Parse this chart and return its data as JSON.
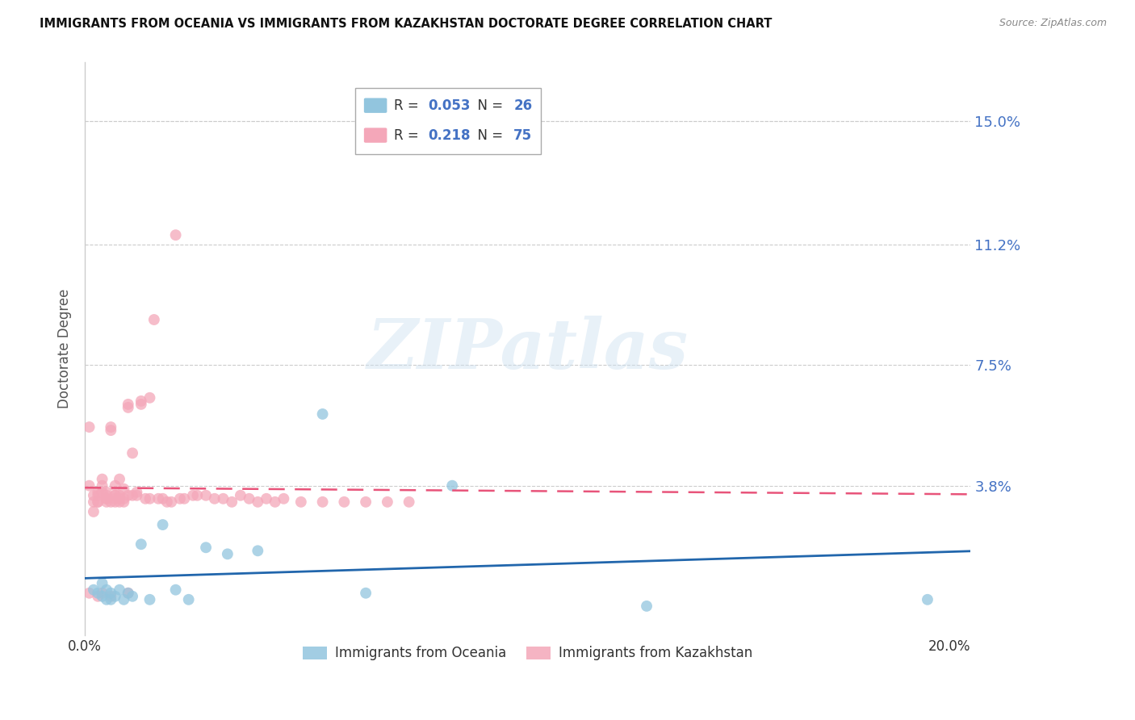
{
  "title": "IMMIGRANTS FROM OCEANIA VS IMMIGRANTS FROM KAZAKHSTAN DOCTORATE DEGREE CORRELATION CHART",
  "source": "Source: ZipAtlas.com",
  "ylabel": "Doctorate Degree",
  "ytick_labels": [
    "15.0%",
    "11.2%",
    "7.5%",
    "3.8%"
  ],
  "ytick_values": [
    0.15,
    0.112,
    0.075,
    0.038
  ],
  "xlim": [
    0.0,
    0.205
  ],
  "ylim": [
    -0.008,
    0.168
  ],
  "oceania_color": "#92c5de",
  "kazakhstan_color": "#f4a7b9",
  "trend_oceania_color": "#2166ac",
  "trend_kazakhstan_color": "#e8547a",
  "watermark": "ZIPatlas",
  "legend_r_oceania": "R = ",
  "legend_r_val_oceania": "0.053",
  "legend_n_oceania": "N = 26",
  "legend_r_kazakhstan": "R = ",
  "legend_r_val_kazakhstan": "0.218",
  "legend_n_kazakhstan": "N = 75",
  "oceania_x": [
    0.002,
    0.003,
    0.004,
    0.004,
    0.005,
    0.005,
    0.006,
    0.006,
    0.007,
    0.008,
    0.009,
    0.01,
    0.011,
    0.013,
    0.015,
    0.018,
    0.021,
    0.024,
    0.028,
    0.033,
    0.04,
    0.055,
    0.065,
    0.085,
    0.13,
    0.195
  ],
  "oceania_y": [
    0.006,
    0.005,
    0.008,
    0.004,
    0.006,
    0.003,
    0.005,
    0.003,
    0.004,
    0.006,
    0.003,
    0.005,
    0.004,
    0.02,
    0.003,
    0.026,
    0.006,
    0.003,
    0.019,
    0.017,
    0.018,
    0.06,
    0.005,
    0.038,
    0.001,
    0.003
  ],
  "kazakhstan_x": [
    0.001,
    0.001,
    0.001,
    0.002,
    0.002,
    0.002,
    0.003,
    0.003,
    0.003,
    0.003,
    0.003,
    0.004,
    0.004,
    0.004,
    0.004,
    0.005,
    0.005,
    0.005,
    0.005,
    0.005,
    0.006,
    0.006,
    0.006,
    0.006,
    0.007,
    0.007,
    0.007,
    0.007,
    0.007,
    0.008,
    0.008,
    0.008,
    0.008,
    0.009,
    0.009,
    0.009,
    0.01,
    0.01,
    0.01,
    0.01,
    0.011,
    0.011,
    0.012,
    0.012,
    0.013,
    0.013,
    0.014,
    0.015,
    0.015,
    0.016,
    0.017,
    0.018,
    0.019,
    0.02,
    0.021,
    0.022,
    0.023,
    0.025,
    0.026,
    0.028,
    0.03,
    0.032,
    0.034,
    0.036,
    0.038,
    0.04,
    0.042,
    0.044,
    0.046,
    0.05,
    0.055,
    0.06,
    0.065,
    0.07,
    0.075
  ],
  "kazakhstan_y": [
    0.038,
    0.056,
    0.005,
    0.033,
    0.03,
    0.035,
    0.033,
    0.033,
    0.035,
    0.036,
    0.004,
    0.036,
    0.04,
    0.038,
    0.005,
    0.033,
    0.034,
    0.036,
    0.035,
    0.034,
    0.055,
    0.056,
    0.033,
    0.004,
    0.038,
    0.034,
    0.035,
    0.033,
    0.035,
    0.04,
    0.033,
    0.035,
    0.034,
    0.034,
    0.037,
    0.033,
    0.063,
    0.062,
    0.035,
    0.005,
    0.035,
    0.048,
    0.035,
    0.036,
    0.063,
    0.064,
    0.034,
    0.034,
    0.065,
    0.089,
    0.034,
    0.034,
    0.033,
    0.033,
    0.115,
    0.034,
    0.034,
    0.035,
    0.035,
    0.035,
    0.034,
    0.034,
    0.033,
    0.035,
    0.034,
    0.033,
    0.034,
    0.033,
    0.034,
    0.033,
    0.033,
    0.033,
    0.033,
    0.033,
    0.033
  ]
}
